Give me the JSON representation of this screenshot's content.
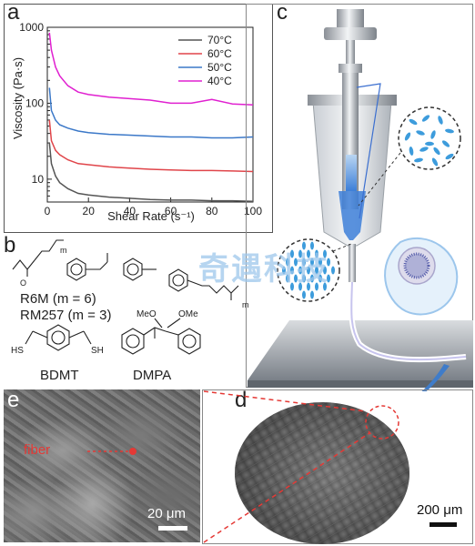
{
  "panels": {
    "a": "a",
    "b": "b",
    "c": "c",
    "d": "d",
    "e": "e"
  },
  "chart_data": {
    "type": "line",
    "xlabel": "Shear Rate (s⁻¹)",
    "ylabel": "Viscosity (Pa·s)",
    "xlim": [
      0,
      100
    ],
    "ylim": [
      5,
      1000
    ],
    "yscale": "log",
    "xticks": [
      0,
      20,
      40,
      60,
      80,
      100
    ],
    "yticks": [
      10,
      100,
      1000
    ],
    "legend_position": "top-right",
    "grid": false,
    "series": [
      {
        "name": "70°C",
        "color": "#555555",
        "x": [
          1,
          2,
          4,
          6,
          10,
          15,
          20,
          30,
          40,
          50,
          60,
          70,
          80,
          90,
          100
        ],
        "y": [
          30,
          16,
          11,
          9,
          7.5,
          6.5,
          6.2,
          5.8,
          5.6,
          5.4,
          5.3,
          5.3,
          5.2,
          5.2,
          5.1
        ]
      },
      {
        "name": "60°C",
        "color": "#e0454a",
        "x": [
          1,
          2,
          4,
          6,
          10,
          15,
          20,
          30,
          40,
          50,
          60,
          70,
          80,
          90,
          100
        ],
        "y": [
          60,
          32,
          24,
          21,
          18,
          16,
          15.5,
          14.5,
          14,
          13.5,
          13.2,
          13,
          13,
          12.8,
          12.6
        ]
      },
      {
        "name": "50°C",
        "color": "#3b78c8",
        "x": [
          1,
          2,
          4,
          6,
          10,
          15,
          20,
          30,
          40,
          50,
          60,
          70,
          80,
          90,
          100
        ],
        "y": [
          160,
          80,
          60,
          52,
          47,
          43,
          41,
          39,
          38,
          37,
          36,
          36,
          35,
          35,
          36
        ]
      },
      {
        "name": "40°C",
        "color": "#e020d0",
        "x": [
          1,
          2,
          4,
          6,
          10,
          15,
          20,
          30,
          40,
          50,
          60,
          70,
          80,
          90,
          100
        ],
        "y": [
          850,
          500,
          300,
          230,
          170,
          140,
          130,
          120,
          115,
          110,
          100,
          100,
          112,
          98,
          95
        ]
      }
    ]
  },
  "chemicals": {
    "r6m": "R6M (m = 6)",
    "rm257": "RM257 (m = 3)",
    "bdmt": "BDMT",
    "dmpa": "DMPA",
    "sub_m": "m",
    "meo": "MeO",
    "ome": "OMe",
    "o": "O",
    "hs": "HS",
    "sh": "SH"
  },
  "watermark": {
    "text": "奇遇科技"
  },
  "micrographs": {
    "fiber_label": "fiber",
    "scale_e": "20 μm",
    "scale_d": "200 μm"
  }
}
